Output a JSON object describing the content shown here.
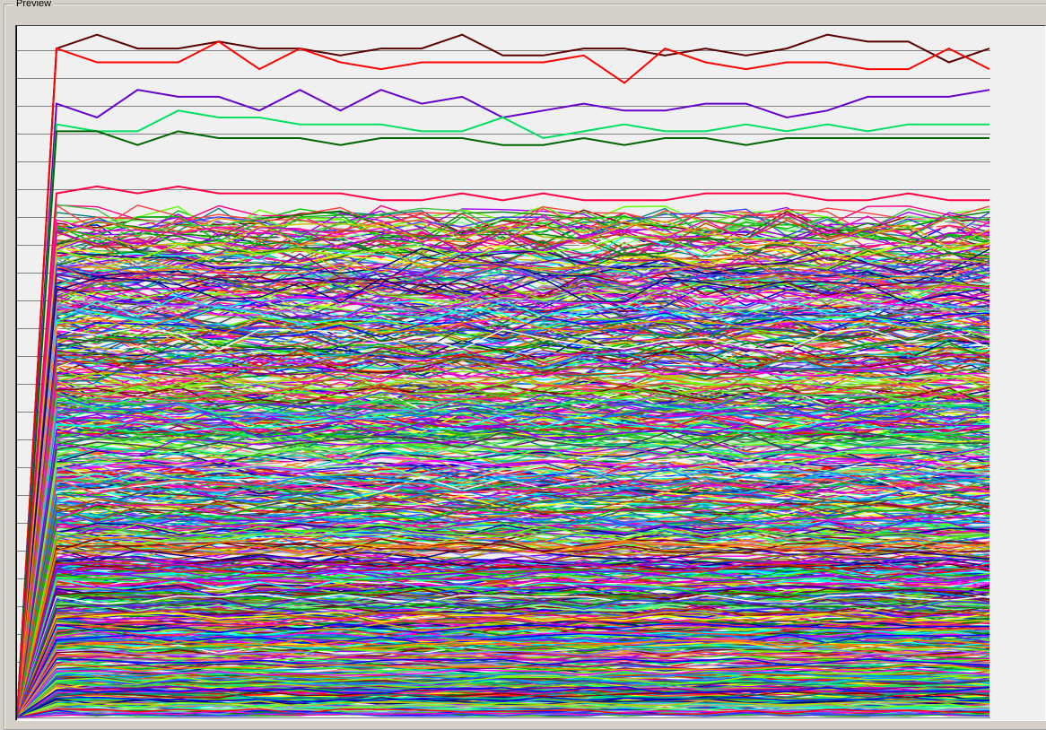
{
  "window": {
    "groupbox_title": "Preview"
  },
  "colors": {
    "panel_bg": "#d4d0c8",
    "plot_bg": "#f0f0f0",
    "gridline": "#808080",
    "axis": "#000000"
  },
  "chart_data": {
    "type": "line",
    "title": "",
    "xlabel": "",
    "ylabel": "",
    "grid": "horizontal",
    "legend": "none",
    "x_points": 24,
    "series_count": 900,
    "highlighted_series": [
      {
        "color": "#5a0000",
        "values": [
          0,
          97,
          99,
          97,
          97,
          98,
          97,
          97,
          96,
          97,
          97,
          99,
          96,
          96,
          97,
          97,
          96,
          97,
          96,
          97,
          99,
          98,
          98,
          95,
          97
        ]
      },
      {
        "color": "#ff0000",
        "values": [
          0,
          97,
          95,
          95,
          95,
          98,
          94,
          97,
          95,
          94,
          95,
          95,
          95,
          95,
          96,
          92,
          97,
          95,
          94,
          95,
          95,
          94,
          94,
          97,
          94
        ]
      },
      {
        "color": "#6600cc",
        "values": [
          0,
          89,
          87,
          91,
          90,
          90,
          88,
          91,
          88,
          91,
          89,
          90,
          87,
          88,
          89,
          88,
          88,
          89,
          89,
          87,
          88,
          90,
          90,
          90,
          91
        ]
      },
      {
        "color": "#00e060",
        "values": [
          0,
          86,
          85,
          85,
          88,
          87,
          87,
          86,
          86,
          86,
          85,
          85,
          87,
          84,
          85,
          86,
          85,
          85,
          86,
          85,
          86,
          85,
          86,
          86,
          86
        ]
      },
      {
        "color": "#006400",
        "values": [
          0,
          85,
          85,
          83,
          85,
          84,
          84,
          84,
          83,
          84,
          84,
          84,
          83,
          83,
          84,
          83,
          84,
          84,
          83,
          84,
          84,
          84,
          84,
          84,
          84
        ]
      },
      {
        "color": "#ff0040",
        "values": [
          0,
          76,
          77,
          76,
          77,
          76,
          76,
          76,
          76,
          75,
          75,
          76,
          75,
          76,
          75,
          75,
          75,
          76,
          76,
          76,
          75,
          75,
          76,
          75,
          75
        ]
      }
    ]
  }
}
